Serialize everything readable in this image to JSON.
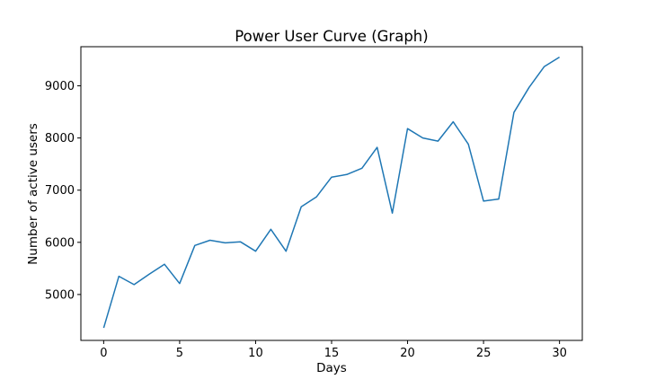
{
  "chart_data": {
    "type": "line",
    "title": "Power User Curve (Graph)",
    "xlabel": "Days",
    "ylabel": "Number of active users",
    "xlim": [
      -1.5,
      31.5
    ],
    "ylim": [
      4120,
      9750
    ],
    "xticks": [
      0,
      5,
      10,
      15,
      20,
      25,
      30
    ],
    "yticks": [
      5000,
      6000,
      7000,
      8000,
      9000
    ],
    "grid": false,
    "series": [
      {
        "color": "#1f77b4",
        "x": [
          0,
          1,
          2,
          3,
          4,
          5,
          6,
          7,
          8,
          9,
          10,
          11,
          12,
          13,
          14,
          15,
          16,
          17,
          18,
          19,
          20,
          21,
          22,
          23,
          24,
          25,
          26,
          27,
          28,
          29,
          30
        ],
        "y": [
          4360,
          5350,
          5190,
          5390,
          5580,
          5210,
          5940,
          6040,
          5990,
          6010,
          5830,
          6250,
          5830,
          6680,
          6870,
          7250,
          7300,
          7420,
          7820,
          6560,
          8180,
          8000,
          7940,
          8310,
          7880,
          6790,
          6830,
          8490,
          8970,
          9370,
          9550
        ]
      }
    ]
  }
}
